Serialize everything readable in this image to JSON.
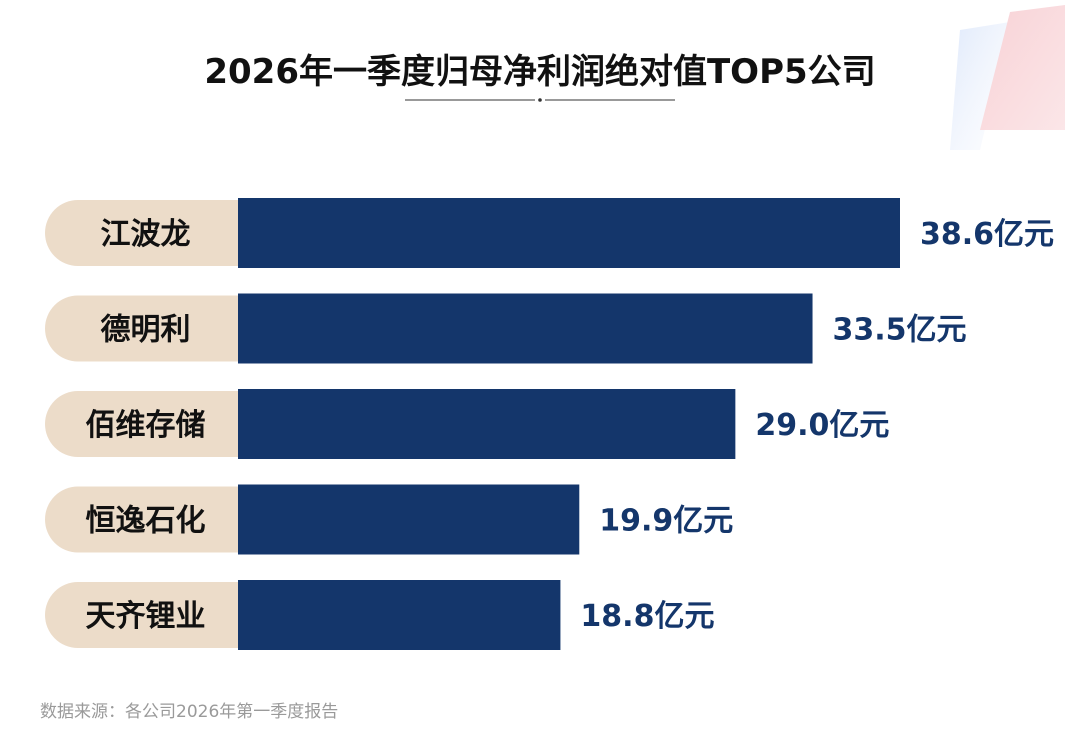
{
  "colors": {
    "bar": "#14366b",
    "label_bg": "#ecdcc9",
    "value_text": "#14366b",
    "category_text": "#111111",
    "title_text": "#111111",
    "source_text": "#9a9a9a"
  },
  "chart_data": {
    "type": "bar",
    "orientation": "horizontal",
    "title": "2026年一季度归母净利润绝对值TOP5公司",
    "categories": [
      "江波龙",
      "德明利",
      "佰维存储",
      "恒逸石化",
      "天齐锂业"
    ],
    "values": [
      38.6,
      33.5,
      29.0,
      19.9,
      18.8
    ],
    "value_labels": [
      "38.6亿元",
      "33.5亿元",
      "29.0亿元",
      "19.9亿元",
      "18.8亿元"
    ],
    "xlim": [
      0,
      38.6
    ],
    "grid": false,
    "legend": "none"
  },
  "source": "数据来源：各公司2026年第一季度报告"
}
